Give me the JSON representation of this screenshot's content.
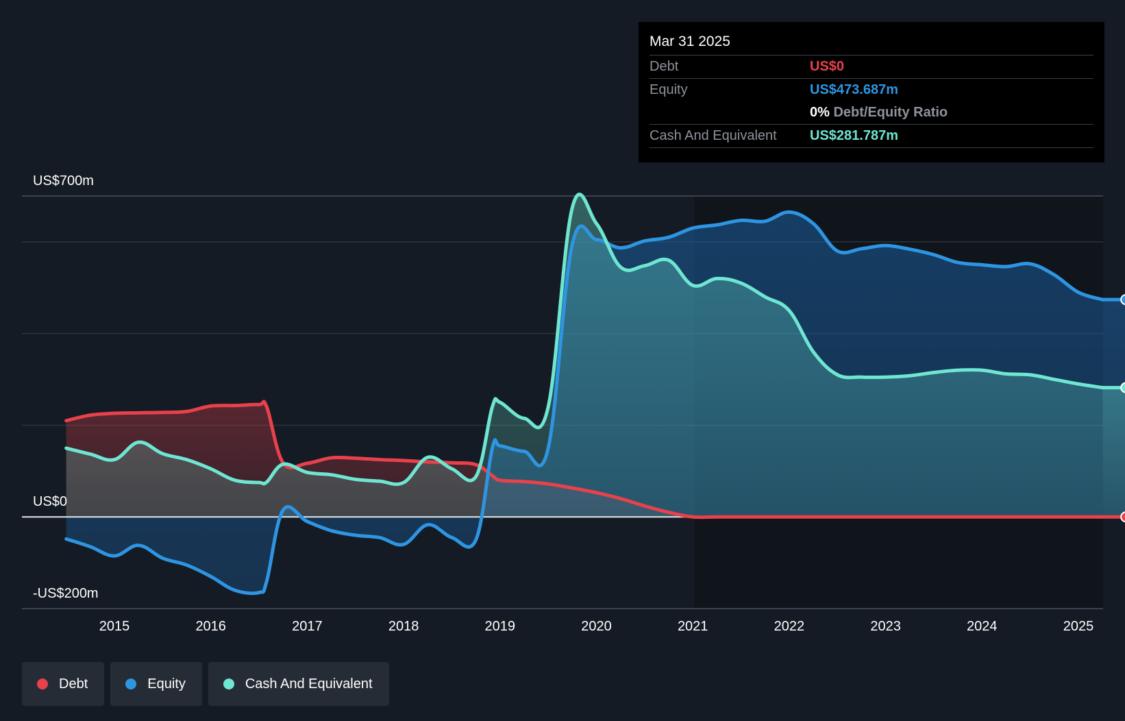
{
  "chart_data": {
    "type": "area",
    "y_axis": {
      "top_label": "US$700m",
      "zero_label": "US$0",
      "bottom_label": "-US$200m",
      "ylim": [
        -200,
        700
      ]
    },
    "x_ticks": [
      "2015",
      "2016",
      "2017",
      "2018",
      "2019",
      "2020",
      "2021",
      "2022",
      "2023",
      "2024",
      "2025"
    ],
    "xlim": [
      2014.45,
      2025.25
    ],
    "grid": true,
    "legend_position": "bottom-left",
    "series": [
      {
        "name": "Debt",
        "color": "#e8414b",
        "points": [
          [
            2014.5,
            210
          ],
          [
            2014.75,
            222
          ],
          [
            2015.0,
            226
          ],
          [
            2015.25,
            227
          ],
          [
            2015.5,
            228
          ],
          [
            2015.75,
            230
          ],
          [
            2016.0,
            242
          ],
          [
            2016.25,
            243
          ],
          [
            2016.5,
            245
          ],
          [
            2016.58,
            240
          ],
          [
            2016.75,
            118
          ],
          [
            2017.0,
            117
          ],
          [
            2017.25,
            129
          ],
          [
            2017.5,
            128
          ],
          [
            2017.75,
            125
          ],
          [
            2018.0,
            123
          ],
          [
            2018.25,
            120
          ],
          [
            2018.5,
            118
          ],
          [
            2018.75,
            114
          ],
          [
            2018.92,
            90
          ],
          [
            2019.0,
            80
          ],
          [
            2019.25,
            77
          ],
          [
            2019.5,
            72
          ],
          [
            2019.75,
            63
          ],
          [
            2020.0,
            53
          ],
          [
            2020.25,
            40
          ],
          [
            2020.5,
            24
          ],
          [
            2020.75,
            10
          ],
          [
            2021.0,
            0
          ],
          [
            2021.25,
            0
          ],
          [
            2021.5,
            0
          ],
          [
            2021.75,
            0
          ],
          [
            2022.0,
            0
          ],
          [
            2022.5,
            0
          ],
          [
            2023.0,
            0
          ],
          [
            2023.5,
            0
          ],
          [
            2024.0,
            0
          ],
          [
            2024.5,
            0
          ],
          [
            2025.0,
            0
          ],
          [
            2025.25,
            0
          ]
        ]
      },
      {
        "name": "Equity",
        "color": "#2e95e2",
        "points": [
          [
            2014.5,
            -48
          ],
          [
            2014.75,
            -65
          ],
          [
            2015.0,
            -85
          ],
          [
            2015.25,
            -62
          ],
          [
            2015.5,
            -90
          ],
          [
            2015.75,
            -105
          ],
          [
            2016.0,
            -130
          ],
          [
            2016.25,
            -160
          ],
          [
            2016.5,
            -165
          ],
          [
            2016.58,
            -140
          ],
          [
            2016.75,
            15
          ],
          [
            2017.0,
            -10
          ],
          [
            2017.25,
            -30
          ],
          [
            2017.5,
            -40
          ],
          [
            2017.75,
            -45
          ],
          [
            2018.0,
            -60
          ],
          [
            2018.25,
            -17
          ],
          [
            2018.5,
            -45
          ],
          [
            2018.75,
            -50
          ],
          [
            2018.92,
            150
          ],
          [
            2019.0,
            155
          ],
          [
            2019.25,
            143
          ],
          [
            2019.5,
            150
          ],
          [
            2019.75,
            595
          ],
          [
            2020.0,
            605
          ],
          [
            2020.25,
            587
          ],
          [
            2020.5,
            602
          ],
          [
            2020.75,
            610
          ],
          [
            2021.0,
            630
          ],
          [
            2021.25,
            637
          ],
          [
            2021.5,
            647
          ],
          [
            2021.75,
            645
          ],
          [
            2022.0,
            665
          ],
          [
            2022.25,
            640
          ],
          [
            2022.5,
            580
          ],
          [
            2022.75,
            585
          ],
          [
            2023.0,
            592
          ],
          [
            2023.25,
            584
          ],
          [
            2023.5,
            572
          ],
          [
            2023.75,
            555
          ],
          [
            2024.0,
            550
          ],
          [
            2024.25,
            546
          ],
          [
            2024.5,
            552
          ],
          [
            2024.75,
            528
          ],
          [
            2025.0,
            490
          ],
          [
            2025.25,
            474
          ]
        ]
      },
      {
        "name": "Cash And Equivalent",
        "color": "#6ee6d2",
        "points": [
          [
            2014.5,
            150
          ],
          [
            2014.75,
            137
          ],
          [
            2015.0,
            125
          ],
          [
            2015.25,
            163
          ],
          [
            2015.5,
            138
          ],
          [
            2015.75,
            125
          ],
          [
            2016.0,
            105
          ],
          [
            2016.25,
            80
          ],
          [
            2016.5,
            75
          ],
          [
            2016.58,
            76
          ],
          [
            2016.75,
            115
          ],
          [
            2017.0,
            97
          ],
          [
            2017.25,
            92
          ],
          [
            2017.5,
            82
          ],
          [
            2017.75,
            78
          ],
          [
            2018.0,
            75
          ],
          [
            2018.25,
            130
          ],
          [
            2018.5,
            105
          ],
          [
            2018.75,
            88
          ],
          [
            2018.92,
            240
          ],
          [
            2019.0,
            250
          ],
          [
            2019.25,
            215
          ],
          [
            2019.5,
            240
          ],
          [
            2019.75,
            675
          ],
          [
            2020.0,
            640
          ],
          [
            2020.25,
            545
          ],
          [
            2020.5,
            548
          ],
          [
            2020.75,
            560
          ],
          [
            2021.0,
            505
          ],
          [
            2021.25,
            520
          ],
          [
            2021.5,
            510
          ],
          [
            2021.75,
            480
          ],
          [
            2022.0,
            450
          ],
          [
            2022.25,
            360
          ],
          [
            2022.5,
            310
          ],
          [
            2022.75,
            305
          ],
          [
            2023.0,
            305
          ],
          [
            2023.25,
            308
          ],
          [
            2023.5,
            315
          ],
          [
            2023.75,
            320
          ],
          [
            2024.0,
            320
          ],
          [
            2024.25,
            312
          ],
          [
            2024.5,
            310
          ],
          [
            2024.75,
            300
          ],
          [
            2025.0,
            290
          ],
          [
            2025.25,
            282
          ]
        ]
      }
    ]
  },
  "tooltip": {
    "date": "Mar 31 2025",
    "rows": [
      {
        "key": "Debt",
        "value": "US$0"
      },
      {
        "key": "Equity",
        "value": "US$473.687m"
      },
      {
        "key": "",
        "ratio_value": "0%",
        "ratio_label": "Debt/Equity Ratio"
      },
      {
        "key": "Cash And Equivalent",
        "value": "US$281.787m"
      }
    ]
  },
  "legend": [
    {
      "label": "Debt",
      "color": "#e8414b"
    },
    {
      "label": "Equity",
      "color": "#2e95e2"
    },
    {
      "label": "Cash And Equivalent",
      "color": "#6ee6d2"
    }
  ]
}
